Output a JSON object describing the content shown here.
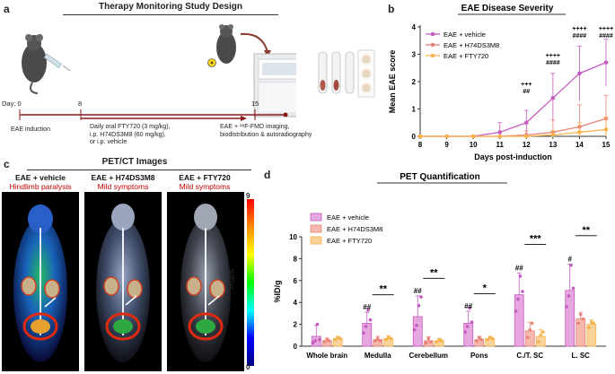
{
  "panels": {
    "a": {
      "letter": "a",
      "title": "Therapy Monitoring Study Design",
      "day_label": "Day: 0",
      "day8": "8",
      "day15": "15",
      "event0": "EAE induction",
      "event8_line1": "Daily oral FTY720 (3 mg/kg),",
      "event8_line2": "i.p. H74DS3M8 (60 mg/kg),",
      "event8_line3": "or i.p. vehicle",
      "event15_line1": "EAE + ¹⁸F-FMD imaging,",
      "event15_line2": "biodistribution & autoradiography"
    },
    "b": {
      "letter": "b"
    },
    "c": {
      "letter": "c",
      "title": "PET/CT Images",
      "cond1": "EAE + vehicle",
      "cond1_sub": "Hindlimb paralysis",
      "cond2": "EAE + H74DS3M8",
      "cond2_sub": "Mild symptoms",
      "cond3": "EAE + FTY720",
      "cond3_sub": "Mild symptoms",
      "scale_max": "9",
      "scale_min": "0",
      "scale_label": "%ID/g"
    },
    "d": {
      "letter": "d"
    }
  },
  "colors": {
    "vehicle": "#c45bbf",
    "h74": "#e8837a",
    "fty": "#f6b24b",
    "vehicle_fill": "#e6a6df",
    "h74_fill": "#f6b8ad",
    "fty_fill": "#f9d39a"
  },
  "chart_data": [
    {
      "type": "line",
      "title": "EAE Disease Severity",
      "xlabel": "Days post-induction",
      "ylabel": "Mean EAE score",
      "x": [
        8,
        9,
        10,
        11,
        12,
        13,
        14,
        15
      ],
      "xlim": [
        8,
        15
      ],
      "ylim": [
        0,
        4
      ],
      "yticks": [
        "0",
        "1",
        "2",
        "3",
        "4"
      ],
      "xticks": [
        "8",
        "9",
        "10",
        "11",
        "12",
        "13",
        "14",
        "15"
      ],
      "series": [
        {
          "name": "EAE + vehicle",
          "values": [
            0,
            0,
            0,
            0.15,
            0.5,
            1.4,
            2.3,
            2.7
          ],
          "err": [
            0,
            0,
            0,
            0.35,
            0.45,
            0.9,
            1.0,
            0.85
          ]
        },
        {
          "name": "EAE + H74DS3M8",
          "values": [
            0,
            0,
            0,
            0,
            0.05,
            0.15,
            0.35,
            0.65
          ],
          "err": [
            0,
            0,
            0,
            0,
            0.15,
            0.45,
            0.8,
            0.85
          ]
        },
        {
          "name": "EAE + FTY720",
          "values": [
            0,
            0,
            0,
            0,
            0,
            0.05,
            0.15,
            0.25
          ],
          "err": [
            0,
            0,
            0,
            0,
            0,
            0.15,
            0.35,
            0.45
          ]
        }
      ],
      "annotations": [
        {
          "x": 12,
          "lines": [
            "+++",
            "##"
          ]
        },
        {
          "x": 13,
          "lines": [
            "++++",
            "####"
          ]
        },
        {
          "x": 14,
          "lines": [
            "++++",
            "####"
          ]
        },
        {
          "x": 15,
          "lines": [
            "++++",
            "####"
          ]
        }
      ]
    },
    {
      "type": "bar",
      "title": "PET Quantification",
      "ylabel": "%ID/g",
      "ylim": [
        0,
        10
      ],
      "yticks": [
        "0",
        "2",
        "4",
        "6",
        "8",
        "10"
      ],
      "categories": [
        "Whole brain",
        "Medulla",
        "Cerebellum",
        "Pons",
        "C./T. SC",
        "L. SC"
      ],
      "series": [
        {
          "name": "EAE + vehicle",
          "values": [
            0.9,
            2.1,
            2.7,
            2.1,
            4.7,
            5.1
          ],
          "err": [
            1.0,
            1.0,
            1.9,
            1.1,
            2.0,
            2.4
          ],
          "points": [
            [
              0.3,
              0.5,
              2.0,
              0.6
            ],
            [
              1.2,
              1.8,
              3.3,
              2.4
            ],
            [
              1.5,
              1.9,
              3.7,
              4.5
            ],
            [
              1.3,
              1.8,
              3.5,
              2.2
            ],
            [
              3.2,
              4.3,
              6.4,
              5.0
            ],
            [
              3.6,
              4.6,
              7.4,
              5.3
            ]
          ]
        },
        {
          "name": "EAE + H74DS3M8",
          "values": [
            0.5,
            0.6,
            0.5,
            0.6,
            1.4,
            2.5
          ],
          "err": [
            0.25,
            0.3,
            0.35,
            0.3,
            0.8,
            0.6
          ],
          "points": [
            [
              0.4,
              0.6,
              0.5
            ],
            [
              0.5,
              0.7,
              0.5
            ],
            [
              0.3,
              0.7,
              0.4
            ],
            [
              0.5,
              0.8,
              0.6
            ],
            [
              0.8,
              1.5,
              2.1
            ],
            [
              2.1,
              2.9,
              2.5
            ]
          ]
        },
        {
          "name": "EAE + FTY720",
          "values": [
            0.7,
            0.7,
            0.5,
            0.7,
            0.9,
            2.0
          ],
          "err": [
            0.2,
            0.25,
            0.2,
            0.2,
            0.6,
            0.4
          ],
          "points": [
            [
              0.6,
              0.8,
              0.7
            ],
            [
              0.6,
              0.8,
              0.7
            ],
            [
              0.4,
              0.6,
              0.5
            ],
            [
              0.6,
              0.8,
              0.7
            ],
            [
              0.4,
              1.0,
              1.3
            ],
            [
              1.7,
              2.2,
              2.1
            ]
          ]
        }
      ],
      "hash_labels": [
        "",
        "##",
        "##",
        "##",
        "##",
        "#"
      ],
      "sig_labels": [
        "",
        "**",
        "**",
        "*",
        "***",
        "**"
      ]
    }
  ]
}
